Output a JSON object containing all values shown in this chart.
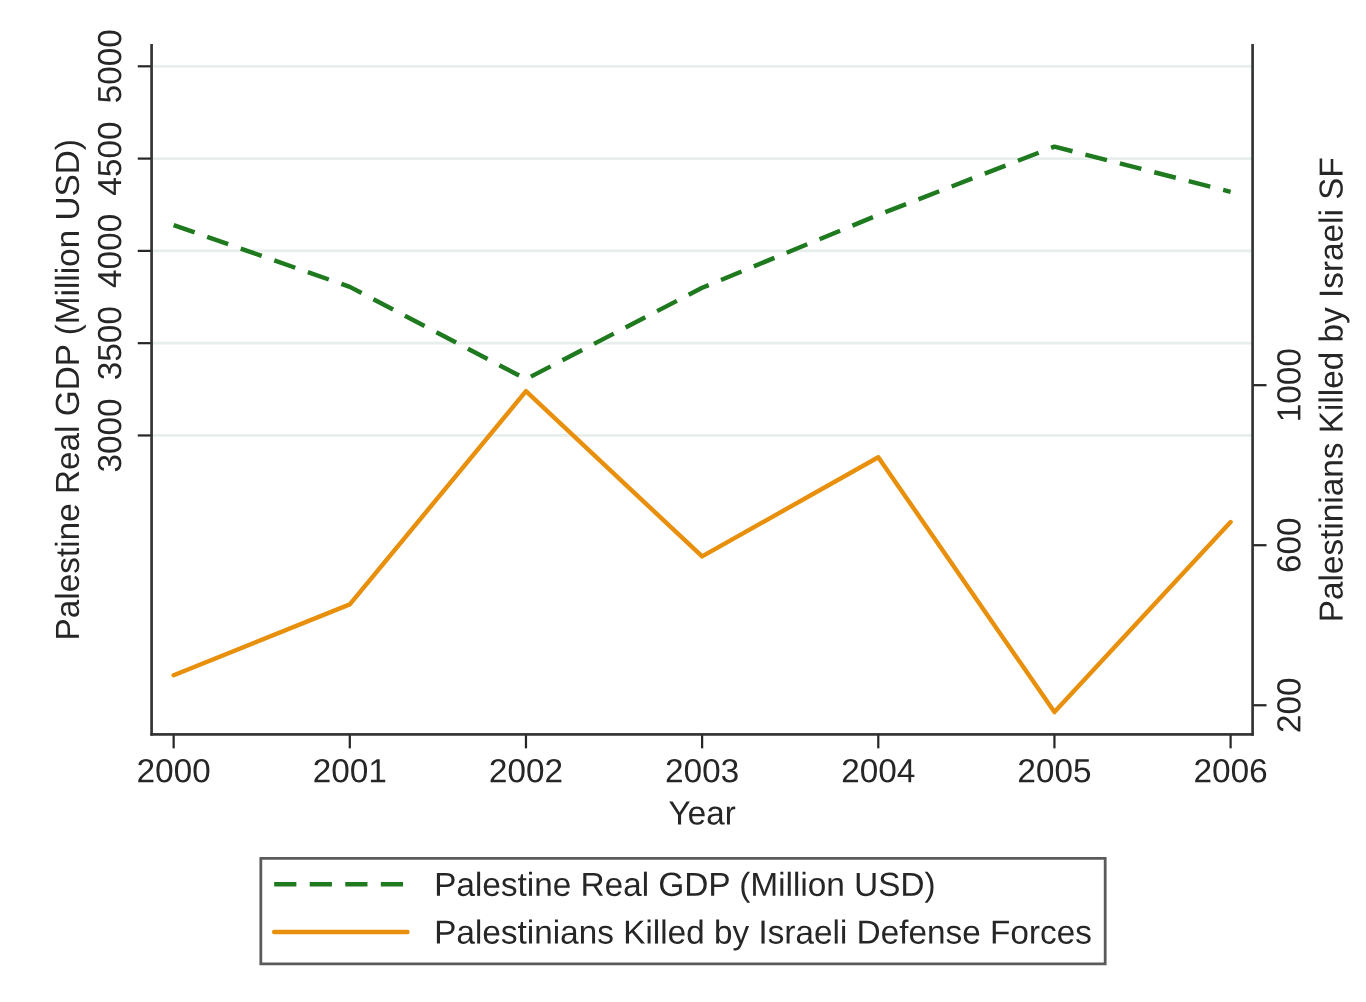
{
  "chart_data": {
    "type": "line",
    "xlabel": "Year",
    "ylabel": "Palestine Real GDP (Million USD)",
    "y2label": "Palestinians Killed by Israeli SF",
    "x": [
      2000,
      2001,
      2002,
      2003,
      2004,
      2005,
      2006
    ],
    "xlim": [
      1999.875,
      2006.125
    ],
    "xticks": [
      2000,
      2001,
      2002,
      2003,
      2004,
      2005,
      2006
    ],
    "ylim": [
      1380,
      5115
    ],
    "yticks": [
      3000,
      3500,
      4000,
      4500,
      5000
    ],
    "y2lim": [
      127,
      1850
    ],
    "y2ticks": [
      200,
      600,
      1000
    ],
    "grid": "y",
    "legend": "bottom",
    "series": [
      {
        "name": "Palestine Real GDP (Million USD)",
        "color": "#1f7a1f",
        "line_style": "dashed",
        "values": [
          4140,
          3805,
          3305,
          3800,
          4195,
          4565,
          4320
        ]
      },
      {
        "name": "Palestinians Killed by Israeli Defense Forces",
        "color": "#e8900c",
        "line_style": "solid",
        "axis": "y2",
        "values": [
          275,
          452,
          985,
          572,
          820,
          183,
          658
        ]
      }
    ]
  }
}
